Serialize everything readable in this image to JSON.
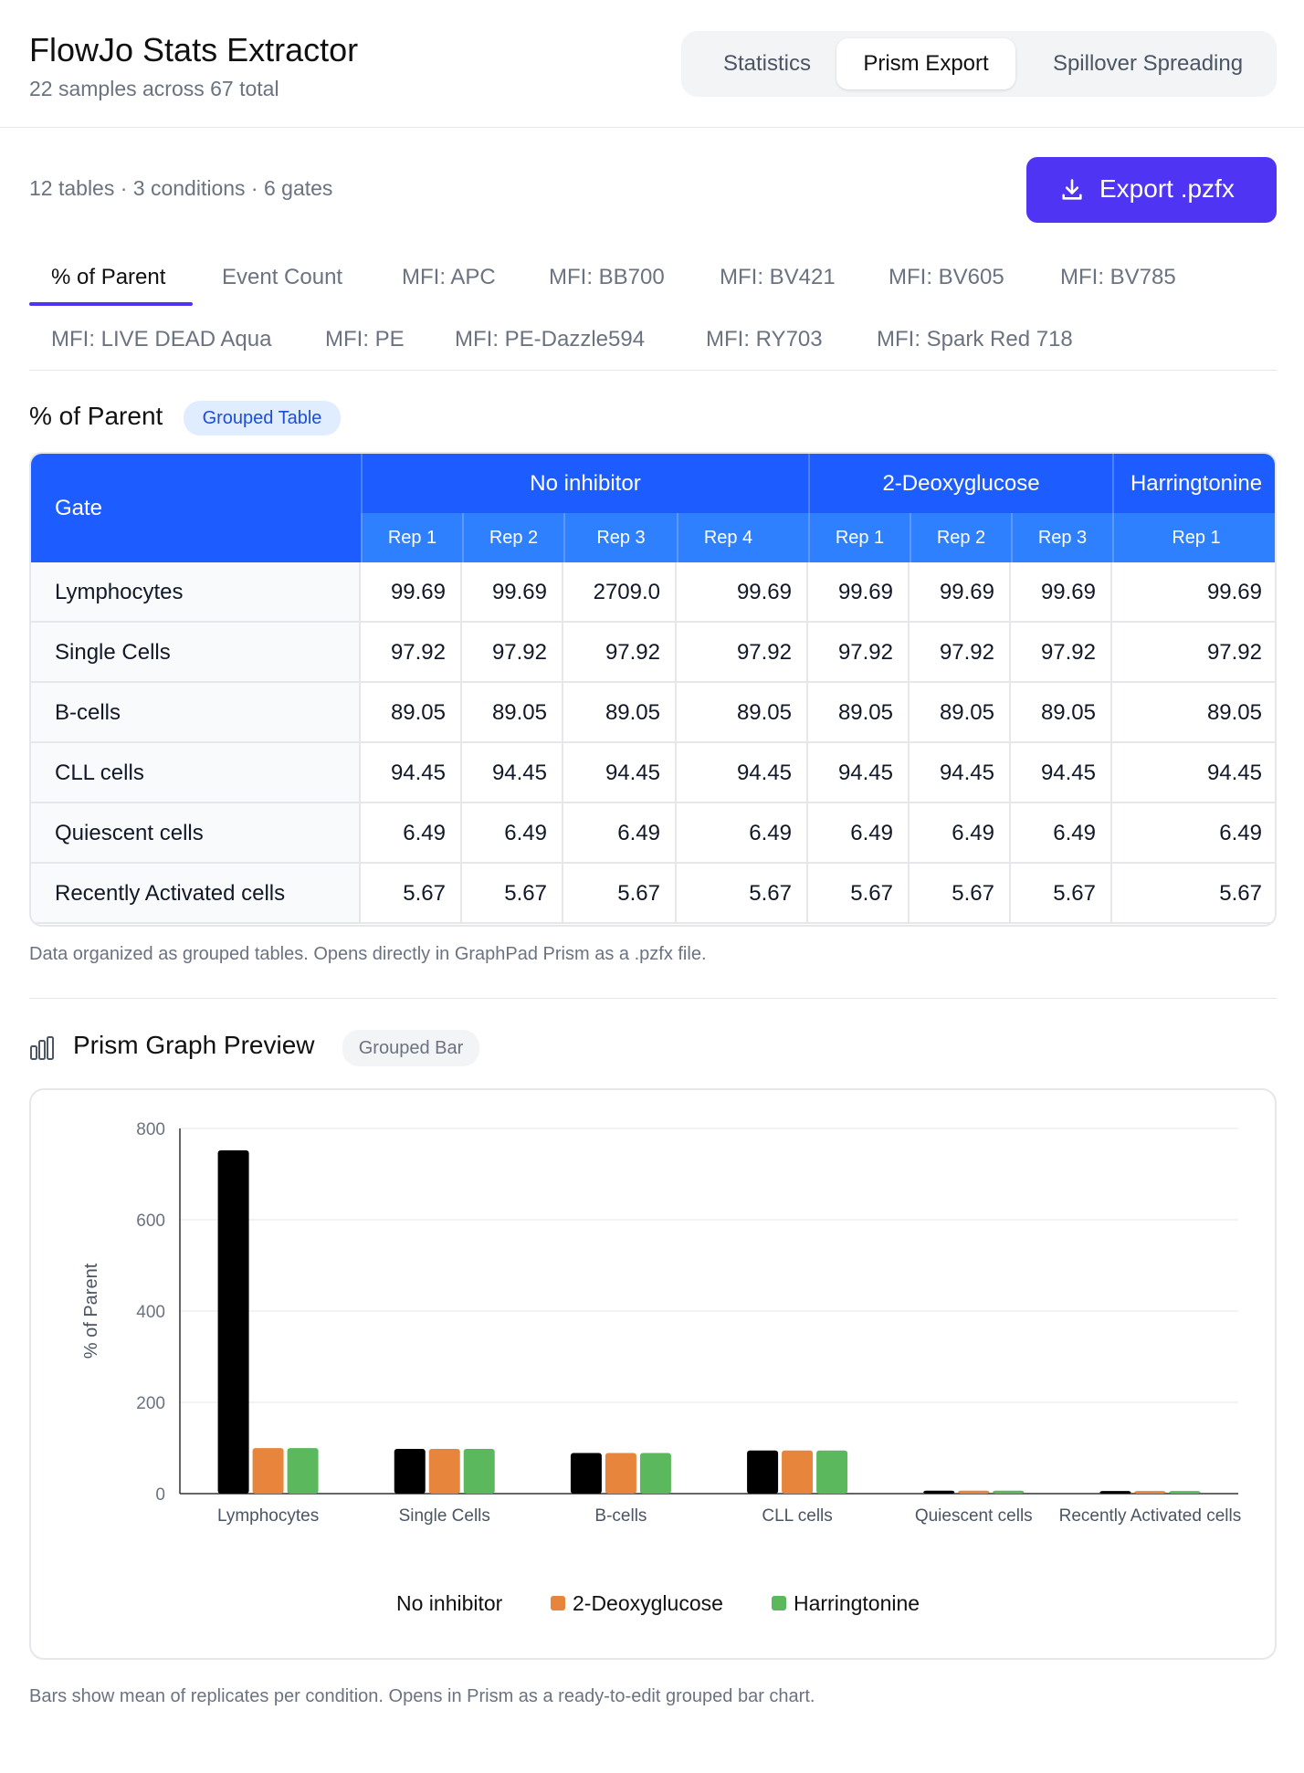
{
  "header": {
    "title": "FlowJo Stats Extractor",
    "subtitle": "22 samples across 67 total",
    "tabs": [
      "Statistics",
      "Prism Export",
      "Spillover Spreading"
    ],
    "active_tab": "Prism Export"
  },
  "summary": "12 tables · 3 conditions · 6 gates",
  "export_button": {
    "label": "Export .pzfx",
    "icon": "download-icon",
    "color": "#4f35f3"
  },
  "stat_tabs": [
    "% of Parent",
    "Event Count",
    "MFI: APC",
    "MFI: BB700",
    "MFI: BV421",
    "MFI: BV605",
    "MFI: BV785",
    "MFI: LIVE DEAD Aqua",
    "MFI: PE",
    "MFI: PE-Dazzle594",
    "MFI: RY703",
    "MFI: Spark Red 718"
  ],
  "active_stat_tab": "% of Parent",
  "table_section": {
    "title": "% of Parent",
    "badge": "Grouped Table"
  },
  "table": {
    "gate_header": "Gate",
    "conditions": [
      {
        "name": "No inhibitor",
        "reps": [
          "Rep 1",
          "Rep 2",
          "Rep 3",
          "Rep 4"
        ]
      },
      {
        "name": "2-Deoxyglucose",
        "reps": [
          "Rep 1",
          "Rep 2",
          "Rep 3"
        ]
      },
      {
        "name": "Harringtonine",
        "reps": [
          "Rep 1"
        ]
      }
    ],
    "rows": [
      {
        "gate": "Lymphocytes",
        "values": [
          "99.69",
          "99.69",
          "2709.0",
          "99.69",
          "99.69",
          "99.69",
          "99.69",
          "99.69"
        ]
      },
      {
        "gate": "Single Cells",
        "values": [
          "97.92",
          "97.92",
          "97.92",
          "97.92",
          "97.92",
          "97.92",
          "97.92",
          "97.92"
        ]
      },
      {
        "gate": "B-cells",
        "values": [
          "89.05",
          "89.05",
          "89.05",
          "89.05",
          "89.05",
          "89.05",
          "89.05",
          "89.05"
        ]
      },
      {
        "gate": "CLL cells",
        "values": [
          "94.45",
          "94.45",
          "94.45",
          "94.45",
          "94.45",
          "94.45",
          "94.45",
          "94.45"
        ]
      },
      {
        "gate": "Quiescent cells",
        "values": [
          "6.49",
          "6.49",
          "6.49",
          "6.49",
          "6.49",
          "6.49",
          "6.49",
          "6.49"
        ]
      },
      {
        "gate": "Recently Activated cells",
        "values": [
          "5.67",
          "5.67",
          "5.67",
          "5.67",
          "5.67",
          "5.67",
          "5.67",
          "5.67"
        ]
      }
    ]
  },
  "table_caption": "Data organized as grouped tables. Opens directly in GraphPad Prism as a .pzfx file.",
  "graph_section": {
    "title": "Prism Graph Preview",
    "badge": "Grouped Bar",
    "icon": "bar-chart-icon"
  },
  "chart_data": {
    "type": "bar",
    "categories": [
      "Lymphocytes",
      "Single Cells",
      "B-cells",
      "CLL cells",
      "Quiescent cells",
      "Recently Activated cells"
    ],
    "series": [
      {
        "name": "No inhibitor",
        "color": "#000000",
        "values": [
          752.0,
          97.92,
          89.05,
          94.45,
          6.49,
          5.67
        ]
      },
      {
        "name": "2-Deoxyglucose",
        "color": "#e8853d",
        "values": [
          99.69,
          97.92,
          89.05,
          94.45,
          6.49,
          5.67
        ]
      },
      {
        "name": "Harringtonine",
        "color": "#5cb85c",
        "values": [
          99.69,
          97.92,
          89.05,
          94.45,
          6.49,
          5.67
        ]
      }
    ],
    "ylabel": "% of Parent",
    "ylim": [
      0,
      800
    ],
    "yticks": [
      0,
      200,
      400,
      600,
      800
    ],
    "grid": true,
    "legend": "bottom"
  },
  "graph_caption": "Bars show mean of replicates per condition. Opens in Prism as a ready-to-edit grouped bar chart."
}
